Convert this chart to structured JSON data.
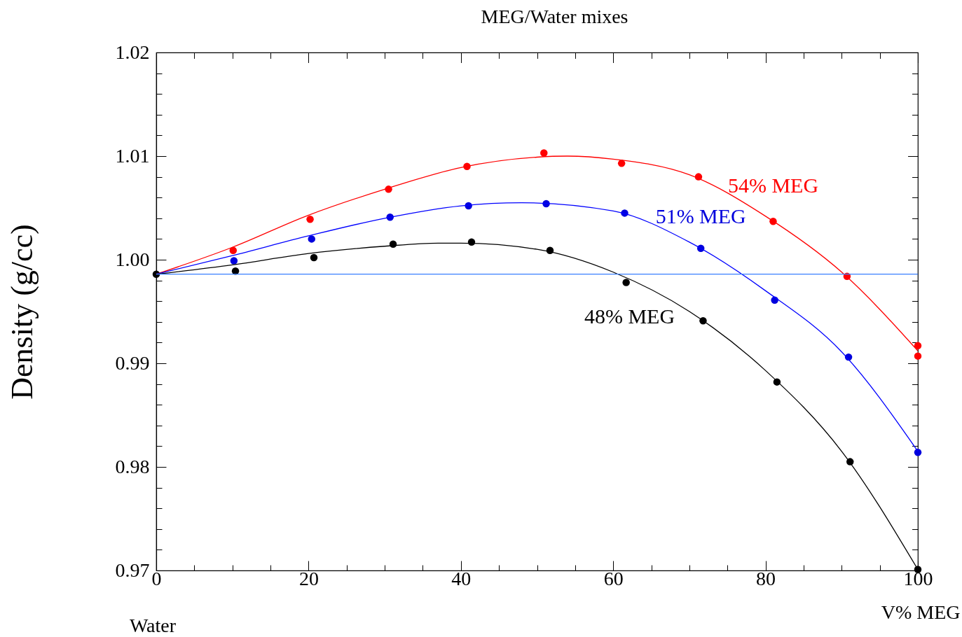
{
  "chart_data": {
    "type": "scatter",
    "title": "MEG/Water mixes",
    "xlabel": "V% MEG",
    "ylabel": "Density (g/cc)",
    "annotations": [
      "Water"
    ],
    "xlim": [
      0,
      100
    ],
    "ylim": [
      0.97,
      1.02
    ],
    "xticks": [
      0,
      {
        "value": 5,
        "label": null
      },
      {
        "value": 10,
        "label": null
      },
      {
        "value": 15,
        "label": null
      },
      20,
      {
        "value": 25,
        "label": null
      },
      {
        "value": 30,
        "label": null
      },
      {
        "value": 35,
        "label": null
      },
      40,
      {
        "value": 45,
        "label": null
      },
      {
        "value": 50,
        "label": null
      },
      {
        "value": 55,
        "label": null
      },
      60,
      {
        "value": 65,
        "label": null
      },
      {
        "value": 70,
        "label": null
      },
      {
        "value": 75,
        "label": null
      },
      80,
      {
        "value": 85,
        "label": null
      },
      {
        "value": 90,
        "label": null
      },
      {
        "value": 95,
        "label": null
      },
      100
    ],
    "yticks": [
      0.97,
      {
        "value": 0.972,
        "label": null
      },
      {
        "value": 0.974,
        "label": null
      },
      {
        "value": 0.976,
        "label": null
      },
      {
        "value": 0.978,
        "label": null
      },
      0.98,
      {
        "value": 0.982,
        "label": null
      },
      {
        "value": 0.984,
        "label": null
      },
      {
        "value": 0.986,
        "label": null
      },
      {
        "value": 0.988,
        "label": null
      },
      0.99,
      {
        "value": 0.992,
        "label": null
      },
      {
        "value": 0.994,
        "label": null
      },
      {
        "value": 0.996,
        "label": null
      },
      {
        "value": 0.998,
        "label": null
      },
      {
        "value": 1.0,
        "label": "1.00"
      },
      {
        "value": 1.002,
        "label": null
      },
      {
        "value": 1.004,
        "label": null
      },
      {
        "value": 1.006,
        "label": null
      },
      {
        "value": 1.008,
        "label": null
      },
      1.01,
      {
        "value": 1.012,
        "label": null
      },
      {
        "value": 1.014,
        "label": null
      },
      {
        "value": 1.016,
        "label": null
      },
      {
        "value": 1.018,
        "label": null
      },
      1.02
    ],
    "grid": false,
    "legend": false,
    "marker": "circle",
    "ref_lines": [
      {
        "axis": "y",
        "value": 0.9986,
        "color": "#3a7fff"
      }
    ],
    "series": [
      {
        "name": "54% MEG",
        "color": "#ff0000",
        "x": [
          10.1,
          20.2,
          30.5,
          40.8,
          50.9,
          61.1,
          71.2,
          81.0,
          90.7,
          100,
          100
        ],
        "values": [
          1.0009,
          1.0039,
          1.0068,
          1.009,
          1.0103,
          1.0093,
          1.008,
          1.0037,
          0.9984,
          0.9917,
          0.9907
        ]
      },
      {
        "name": "51% MEG",
        "color": "#0000dd",
        "x": [
          10.2,
          20.4,
          30.7,
          41.0,
          51.2,
          61.5,
          71.5,
          81.2,
          90.9,
          100
        ],
        "values": [
          0.9999,
          1.002,
          1.0041,
          1.0052,
          1.0054,
          1.0045,
          1.0011,
          0.9961,
          0.9906,
          0.9814
        ]
      },
      {
        "name": "48% MEG",
        "color": "#000000",
        "x": [
          0,
          10.4,
          20.7,
          31.1,
          41.4,
          51.7,
          61.7,
          71.8,
          81.5,
          91.1,
          100
        ],
        "values": [
          0.9986,
          0.9989,
          1.0002,
          1.0015,
          1.0017,
          1.0009,
          0.9978,
          0.9941,
          0.9882,
          0.9805,
          0.9701
        ]
      },
      {
        "type": "line",
        "marker": "none",
        "line_style": "solid",
        "color": "#ff0000",
        "x": [
          0,
          10,
          20,
          30,
          40,
          50,
          54,
          60,
          70,
          80,
          90,
          100
        ],
        "values": [
          0.9986,
          1.0012,
          1.0043,
          1.0068,
          1.0089,
          1.0099,
          1.01,
          1.0097,
          1.0082,
          1.0042,
          0.9988,
          0.9912
        ]
      },
      {
        "type": "line",
        "marker": "none",
        "line_style": "solid",
        "color": "#0000ff",
        "x": [
          0,
          10,
          20,
          30,
          40,
          48,
          60,
          70,
          80,
          90,
          100
        ],
        "values": [
          0.9986,
          1.0004,
          1.0023,
          1.004,
          1.0052,
          1.0055,
          1.0047,
          1.0017,
          0.997,
          0.9911,
          0.9815
        ]
      },
      {
        "type": "line",
        "marker": "none",
        "line_style": "solid",
        "color": "#000000",
        "x": [
          0,
          10,
          20,
          30,
          37,
          40,
          50,
          60,
          70,
          80,
          90,
          100
        ],
        "values": [
          0.9986,
          0.9995,
          1.0006,
          1.0013,
          1.0016,
          1.0016,
          1.001,
          0.9988,
          0.995,
          0.9893,
          0.9815,
          0.9701
        ]
      }
    ]
  }
}
